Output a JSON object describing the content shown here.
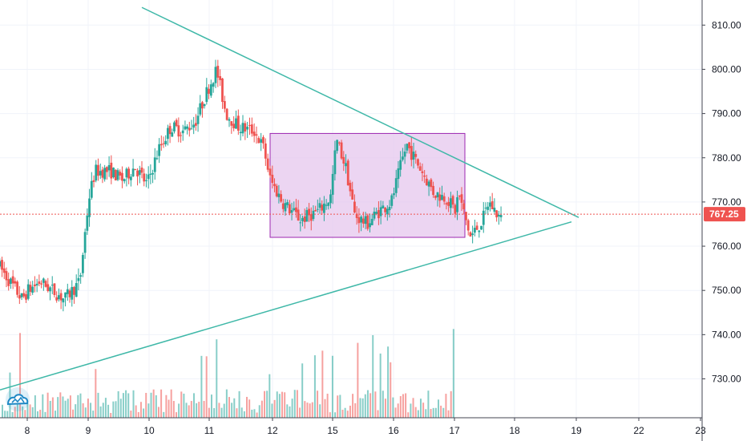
{
  "colors": {
    "up": "#26a69a",
    "down": "#ef5350",
    "trendline": "#3fb8a8",
    "box_fill": "#e6c7ee",
    "box_stroke": "#9c27b0",
    "last_price": "#ef5350",
    "grid": "#f0f3fa",
    "axis_line": "#434651"
  },
  "logo": {
    "icon": "cloud-logo-icon"
  },
  "chart_data": {
    "type": "candlestick",
    "title": "",
    "xlabel": "",
    "ylabel": "",
    "ylim": [
      722,
      815
    ],
    "xlim": [
      7.55,
      23.0
    ],
    "grid": "on",
    "x_ticks": [
      {
        "x": 8,
        "label": "8"
      },
      {
        "x": 9,
        "label": "9"
      },
      {
        "x": 10,
        "label": "10"
      },
      {
        "x": 11,
        "label": "11"
      },
      {
        "x": 12,
        "label": "12"
      },
      {
        "x": 15,
        "label": "15"
      },
      {
        "x": 16,
        "label": "16"
      },
      {
        "x": 17,
        "label": "17"
      },
      {
        "x": 18,
        "label": "18"
      },
      {
        "x": 19,
        "label": "19"
      },
      {
        "x": 22,
        "label": "22"
      },
      {
        "x": 23,
        "label": "23"
      }
    ],
    "y_ticks": [
      730,
      740,
      750,
      760,
      770,
      780,
      790,
      800,
      810
    ],
    "y_tick_labels": [
      "730.00",
      "740.00",
      "750.00",
      "760.00",
      "770.00",
      "780.00",
      "790.00",
      "800.00",
      "810.00"
    ],
    "last_price": {
      "value": 767.25,
      "label": "767.25"
    },
    "anchors": [
      [
        7.55,
        756
      ],
      [
        7.75,
        752
      ],
      [
        7.95,
        748
      ],
      [
        8.05,
        750
      ],
      [
        8.25,
        752
      ],
      [
        8.45,
        750
      ],
      [
        8.65,
        748
      ],
      [
        8.9,
        752
      ],
      [
        9.0,
        765
      ],
      [
        9.05,
        771
      ],
      [
        9.15,
        777
      ],
      [
        9.4,
        777
      ],
      [
        9.6,
        775
      ],
      [
        9.8,
        778
      ],
      [
        10.0,
        774
      ],
      [
        10.2,
        782
      ],
      [
        10.4,
        787
      ],
      [
        10.6,
        786
      ],
      [
        10.8,
        788
      ],
      [
        11.0,
        795
      ],
      [
        11.15,
        800
      ],
      [
        11.3,
        790
      ],
      [
        11.5,
        787
      ],
      [
        11.75,
        786
      ],
      [
        11.9,
        782
      ],
      [
        12.0,
        775
      ],
      [
        12.2,
        770
      ],
      [
        12.5,
        766
      ],
      [
        12.8,
        768
      ],
      [
        13.0,
        771
      ],
      [
        13.1,
        784
      ],
      [
        13.25,
        778
      ],
      [
        13.4,
        767
      ],
      [
        13.6,
        765
      ],
      [
        13.8,
        768
      ],
      [
        14.0,
        770
      ],
      [
        14.15,
        778
      ],
      [
        14.25,
        783
      ],
      [
        14.5,
        777
      ],
      [
        14.7,
        772
      ],
      [
        14.9,
        771
      ],
      [
        15.05,
        768
      ],
      [
        15.1,
        772
      ],
      [
        15.3,
        762
      ],
      [
        15.5,
        766
      ],
      [
        15.6,
        770
      ],
      [
        15.8,
        766
      ]
    ],
    "volume_bars": 180,
    "trendlines": [
      {
        "name": "upper",
        "from": [
          9.95,
          814
        ],
        "to": [
          19.05,
          766.5
        ]
      },
      {
        "name": "lower",
        "from": [
          7.55,
          727.5
        ],
        "to": [
          18.95,
          765.5
        ]
      }
    ],
    "range_box": {
      "x": [
        12.0,
        15.6
      ],
      "y": [
        762,
        785.5
      ]
    }
  }
}
